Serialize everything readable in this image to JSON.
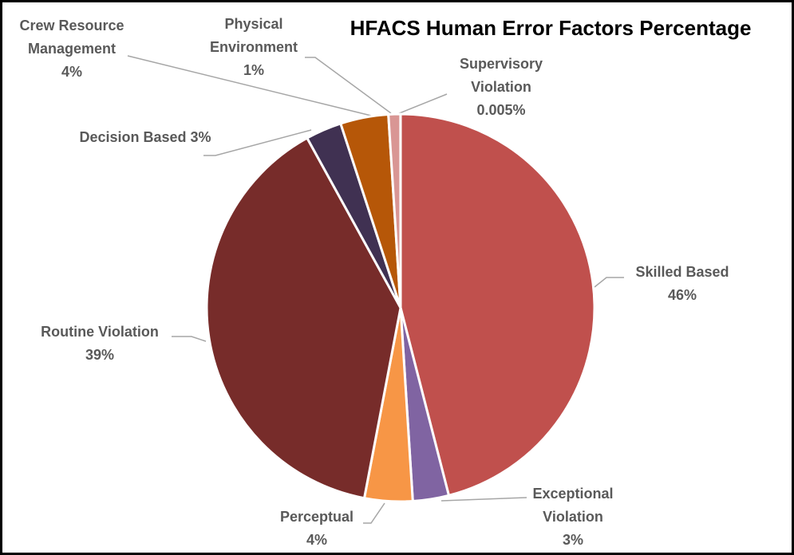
{
  "chart_data": {
    "type": "pie",
    "title": "HFACS Human Error Factors Percentage",
    "categories": [
      "Skilled Based",
      "Exceptional Violation",
      "Perceptual",
      "Routine Violation",
      "Decision Based",
      "Crew Resource Management",
      "Physical Environment",
      "Supervisory Violation"
    ],
    "values": [
      46,
      3,
      4,
      39,
      3,
      4,
      1,
      0.005
    ],
    "value_labels": [
      "46%",
      "3%",
      "4%",
      "39%",
      "3%",
      "4%",
      "1%",
      "0.005%"
    ],
    "colors": [
      "#c0504d",
      "#8064a2",
      "#f79646",
      "#772c2a",
      "#403152",
      "#b65708",
      "#d99694",
      "#b3a2c7"
    ]
  }
}
